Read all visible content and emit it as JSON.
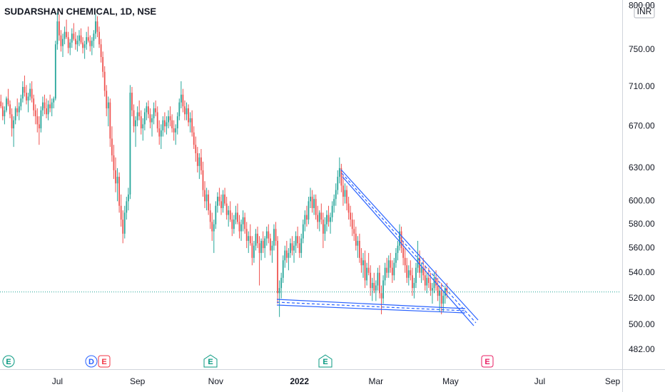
{
  "chart_data": {
    "type": "candlestick",
    "title": "SUDARSHAN CHEMICAL, 1D, NSE",
    "currency": "INR",
    "log_scale": true,
    "grid": false,
    "up_color": "#26a69a",
    "down_color": "#ef5350",
    "line_color": "#2962ff",
    "ylim": [
      470,
      807
    ],
    "yticks": [
      {
        "value": 800,
        "label": "800.00"
      },
      {
        "value": 750,
        "label": "750.00"
      },
      {
        "value": 710,
        "label": "710.00"
      },
      {
        "value": 670,
        "label": "670.00"
      },
      {
        "value": 630,
        "label": "630.00"
      },
      {
        "value": 600,
        "label": "600.00"
      },
      {
        "value": 580,
        "label": "580.00"
      },
      {
        "value": 560,
        "label": "560.00"
      },
      {
        "value": 540,
        "label": "540.00"
      },
      {
        "value": 520,
        "label": "520.00"
      },
      {
        "value": 500,
        "label": "500.00"
      },
      {
        "value": 482,
        "label": "482.00"
      }
    ],
    "xlim": [
      -0.5,
      340.5
    ],
    "xticks": [
      {
        "value": 31,
        "label": "Jul"
      },
      {
        "value": 75,
        "label": "Sep"
      },
      {
        "value": 118,
        "label": "Nov"
      },
      {
        "value": 164,
        "label": "2022"
      },
      {
        "value": 206,
        "label": "Mar"
      },
      {
        "value": 247,
        "label": "May"
      },
      {
        "value": 296,
        "label": "Jul"
      },
      {
        "value": 336,
        "label": "Sep"
      }
    ],
    "events": [
      {
        "label": "E",
        "color": "#089981"
      },
      {
        "label": "D",
        "color": "#2962ff"
      },
      {
        "label": "E",
        "color": "#f23645"
      },
      {
        "label": "E",
        "color": "#089981"
      },
      {
        "label": "E",
        "color": "#089981"
      },
      {
        "label": "E",
        "color": "#e91e63"
      }
    ],
    "ohlc": [
      [
        695,
        702,
        688,
        690
      ],
      [
        690,
        694,
        676,
        680
      ],
      [
        680,
        690,
        672,
        686
      ],
      [
        686,
        700,
        684,
        698
      ],
      [
        698,
        708,
        690,
        692
      ],
      [
        692,
        696,
        678,
        682
      ],
      [
        682,
        688,
        660,
        668
      ],
      [
        668,
        680,
        650,
        676
      ],
      [
        676,
        690,
        672,
        688
      ],
      [
        688,
        698,
        680,
        684
      ],
      [
        684,
        694,
        676,
        690
      ],
      [
        690,
        702,
        686,
        698
      ],
      [
        698,
        716,
        694,
        710
      ],
      [
        710,
        722,
        700,
        704
      ],
      [
        704,
        712,
        692,
        696
      ],
      [
        696,
        704,
        684,
        700
      ],
      [
        700,
        714,
        696,
        708
      ],
      [
        708,
        716,
        694,
        698
      ],
      [
        698,
        702,
        680,
        686
      ],
      [
        686,
        692,
        672,
        680
      ],
      [
        680,
        688,
        664,
        672
      ],
      [
        672,
        680,
        652,
        668
      ],
      [
        668,
        690,
        664,
        686
      ],
      [
        686,
        700,
        680,
        694
      ],
      [
        694,
        702,
        682,
        688
      ],
      [
        688,
        698,
        678,
        682
      ],
      [
        682,
        696,
        676,
        692
      ],
      [
        692,
        702,
        684,
        688
      ],
      [
        688,
        698,
        680,
        694
      ],
      [
        694,
        700,
        688,
        698
      ],
      [
        698,
        760,
        696,
        756
      ],
      [
        756,
        792,
        750,
        782
      ],
      [
        782,
        790,
        760,
        766
      ],
      [
        766,
        772,
        748,
        754
      ],
      [
        754,
        768,
        742,
        762
      ],
      [
        762,
        776,
        756,
        770
      ],
      [
        770,
        784,
        762,
        764
      ],
      [
        764,
        770,
        746,
        752
      ],
      [
        752,
        762,
        744,
        758
      ],
      [
        758,
        774,
        752,
        768
      ],
      [
        768,
        780,
        760,
        762
      ],
      [
        762,
        770,
        750,
        756
      ],
      [
        756,
        766,
        748,
        760
      ],
      [
        760,
        772,
        754,
        766
      ],
      [
        766,
        774,
        756,
        758
      ],
      [
        758,
        764,
        746,
        752
      ],
      [
        752,
        760,
        740,
        756
      ],
      [
        756,
        770,
        750,
        764
      ],
      [
        764,
        776,
        758,
        760
      ],
      [
        760,
        766,
        748,
        754
      ],
      [
        754,
        764,
        744,
        760
      ],
      [
        760,
        772,
        752,
        768
      ],
      [
        768,
        790,
        762,
        782
      ],
      [
        782,
        788,
        764,
        770
      ],
      [
        770,
        776,
        752,
        756
      ],
      [
        756,
        762,
        736,
        742
      ],
      [
        742,
        748,
        720,
        726
      ],
      [
        726,
        732,
        700,
        706
      ],
      [
        706,
        712,
        680,
        688
      ],
      [
        688,
        700,
        670,
        694
      ],
      [
        694,
        698,
        650,
        658
      ],
      [
        658,
        670,
        636,
        642
      ],
      [
        642,
        652,
        620,
        628
      ],
      [
        628,
        640,
        608,
        616
      ],
      [
        616,
        630,
        600,
        622
      ],
      [
        622,
        626,
        590,
        596
      ],
      [
        596,
        606,
        578,
        584
      ],
      [
        584,
        592,
        564,
        572
      ],
      [
        572,
        596,
        568,
        590
      ],
      [
        590,
        604,
        584,
        600
      ],
      [
        600,
        612,
        592,
        606
      ],
      [
        606,
        712,
        602,
        704
      ],
      [
        704,
        710,
        680,
        686
      ],
      [
        686,
        692,
        664,
        670
      ],
      [
        670,
        680,
        650,
        676
      ],
      [
        676,
        690,
        670,
        684
      ],
      [
        684,
        696,
        676,
        680
      ],
      [
        680,
        686,
        662,
        668
      ],
      [
        668,
        678,
        656,
        672
      ],
      [
        672,
        688,
        666,
        684
      ],
      [
        684,
        694,
        676,
        690
      ],
      [
        690,
        696,
        678,
        682
      ],
      [
        682,
        688,
        668,
        674
      ],
      [
        674,
        682,
        660,
        678
      ],
      [
        678,
        694,
        672,
        688
      ],
      [
        688,
        696,
        680,
        684
      ],
      [
        684,
        690,
        664,
        668
      ],
      [
        668,
        676,
        652,
        660
      ],
      [
        660,
        672,
        648,
        666
      ],
      [
        666,
        680,
        660,
        676
      ],
      [
        676,
        684,
        664,
        670
      ],
      [
        670,
        680,
        662,
        674
      ],
      [
        674,
        686,
        668,
        680
      ],
      [
        680,
        690,
        670,
        676
      ],
      [
        676,
        682,
        664,
        668
      ],
      [
        668,
        676,
        656,
        664
      ],
      [
        664,
        672,
        652,
        668
      ],
      [
        668,
        684,
        662,
        680
      ],
      [
        680,
        698,
        676,
        694
      ],
      [
        694,
        716,
        688,
        702
      ],
      [
        702,
        708,
        684,
        690
      ],
      [
        690,
        696,
        676,
        682
      ],
      [
        682,
        694,
        676,
        688
      ],
      [
        688,
        692,
        670,
        674
      ],
      [
        674,
        684,
        664,
        678
      ],
      [
        678,
        686,
        660,
        664
      ],
      [
        664,
        670,
        648,
        652
      ],
      [
        652,
        660,
        636,
        644
      ],
      [
        644,
        650,
        626,
        632
      ],
      [
        632,
        644,
        620,
        640
      ],
      [
        640,
        648,
        624,
        628
      ],
      [
        628,
        636,
        604,
        610
      ],
      [
        610,
        618,
        594,
        600
      ],
      [
        600,
        612,
        592,
        606
      ],
      [
        606,
        610,
        588,
        592
      ],
      [
        592,
        598,
        576,
        582
      ],
      [
        582,
        590,
        566,
        574
      ],
      [
        574,
        584,
        556,
        580
      ],
      [
        580,
        600,
        576,
        596
      ],
      [
        596,
        608,
        590,
        604
      ],
      [
        604,
        612,
        596,
        600
      ],
      [
        600,
        606,
        588,
        594
      ],
      [
        594,
        610,
        590,
        606
      ],
      [
        606,
        612,
        596,
        598
      ],
      [
        598,
        604,
        584,
        588
      ],
      [
        588,
        596,
        578,
        592
      ],
      [
        592,
        600,
        582,
        584
      ],
      [
        584,
        590,
        570,
        576
      ],
      [
        576,
        588,
        572,
        584
      ],
      [
        584,
        596,
        580,
        590
      ],
      [
        590,
        598,
        580,
        582
      ],
      [
        582,
        588,
        568,
        574
      ],
      [
        574,
        584,
        566,
        580
      ],
      [
        580,
        592,
        574,
        586
      ],
      [
        586,
        590,
        572,
        576
      ],
      [
        576,
        582,
        560,
        566
      ],
      [
        566,
        574,
        556,
        570
      ],
      [
        570,
        580,
        562,
        564
      ],
      [
        564,
        570,
        546,
        552
      ],
      [
        552,
        566,
        548,
        562
      ],
      [
        562,
        576,
        558,
        572
      ],
      [
        572,
        578,
        560,
        564
      ],
      [
        564,
        570,
        530,
        556
      ],
      [
        556,
        568,
        550,
        566
      ],
      [
        566,
        574,
        556,
        560
      ],
      [
        560,
        570,
        552,
        568
      ],
      [
        568,
        578,
        562,
        574
      ],
      [
        574,
        580,
        564,
        568
      ],
      [
        568,
        572,
        554,
        558
      ],
      [
        558,
        566,
        548,
        562
      ],
      [
        562,
        580,
        558,
        576
      ],
      [
        576,
        582,
        562,
        566
      ],
      [
        566,
        570,
        516,
        524
      ],
      [
        524,
        534,
        506,
        528
      ],
      [
        528,
        540,
        520,
        536
      ],
      [
        536,
        554,
        532,
        550
      ],
      [
        550,
        562,
        544,
        558
      ],
      [
        558,
        566,
        548,
        552
      ],
      [
        552,
        560,
        542,
        556
      ],
      [
        556,
        568,
        552,
        564
      ],
      [
        564,
        570,
        554,
        558
      ],
      [
        558,
        566,
        548,
        562
      ],
      [
        562,
        574,
        556,
        570
      ],
      [
        570,
        578,
        560,
        564
      ],
      [
        564,
        570,
        552,
        556
      ],
      [
        556,
        572,
        552,
        568
      ],
      [
        568,
        584,
        564,
        580
      ],
      [
        580,
        592,
        574,
        588
      ],
      [
        588,
        596,
        578,
        584
      ],
      [
        584,
        604,
        580,
        600
      ],
      [
        600,
        612,
        594,
        604
      ],
      [
        604,
        610,
        590,
        594
      ],
      [
        594,
        606,
        588,
        602
      ],
      [
        602,
        606,
        584,
        588
      ],
      [
        588,
        596,
        576,
        582
      ],
      [
        582,
        592,
        574,
        590
      ],
      [
        590,
        598,
        580,
        584
      ],
      [
        584,
        590,
        560,
        572
      ],
      [
        572,
        586,
        566,
        580
      ],
      [
        580,
        592,
        574,
        588
      ],
      [
        588,
        596,
        578,
        582
      ],
      [
        582,
        590,
        572,
        586
      ],
      [
        586,
        600,
        582,
        596
      ],
      [
        596,
        606,
        590,
        602
      ],
      [
        602,
        616,
        596,
        610
      ],
      [
        610,
        628,
        606,
        622
      ],
      [
        622,
        640,
        616,
        630
      ],
      [
        630,
        634,
        608,
        614
      ],
      [
        614,
        624,
        596,
        604
      ],
      [
        604,
        616,
        598,
        610
      ],
      [
        610,
        614,
        592,
        598
      ],
      [
        598,
        604,
        584,
        590
      ],
      [
        590,
        596,
        578,
        584
      ],
      [
        584,
        590,
        570,
        576
      ],
      [
        576,
        584,
        566,
        572
      ],
      [
        572,
        578,
        558,
        562
      ],
      [
        562,
        570,
        552,
        566
      ],
      [
        566,
        572,
        548,
        552
      ],
      [
        552,
        560,
        540,
        546
      ],
      [
        546,
        556,
        536,
        550
      ],
      [
        550,
        558,
        528,
        534
      ],
      [
        534,
        548,
        530,
        544
      ],
      [
        544,
        556,
        538,
        540
      ],
      [
        540,
        546,
        522,
        528
      ],
      [
        528,
        536,
        518,
        532
      ],
      [
        532,
        540,
        524,
        526
      ],
      [
        526,
        534,
        518,
        530
      ],
      [
        530,
        544,
        526,
        540
      ],
      [
        540,
        546,
        520,
        524
      ],
      [
        524,
        530,
        508,
        520
      ],
      [
        520,
        538,
        516,
        534
      ],
      [
        534,
        548,
        530,
        544
      ],
      [
        544,
        552,
        536,
        540
      ],
      [
        540,
        554,
        536,
        550
      ],
      [
        550,
        556,
        540,
        544
      ],
      [
        544,
        550,
        532,
        538
      ],
      [
        538,
        552,
        534,
        548
      ],
      [
        548,
        560,
        544,
        556
      ],
      [
        556,
        566,
        550,
        562
      ],
      [
        562,
        580,
        558,
        574
      ],
      [
        574,
        578,
        556,
        560
      ],
      [
        560,
        566,
        546,
        552
      ],
      [
        552,
        560,
        540,
        546
      ],
      [
        546,
        552,
        532,
        536
      ],
      [
        536,
        546,
        530,
        542
      ],
      [
        542,
        550,
        534,
        538
      ],
      [
        538,
        544,
        522,
        528
      ],
      [
        528,
        536,
        520,
        532
      ],
      [
        532,
        548,
        528,
        544
      ],
      [
        544,
        566,
        540,
        552
      ],
      [
        552,
        558,
        536,
        540
      ],
      [
        540,
        548,
        532,
        544
      ],
      [
        544,
        552,
        534,
        538
      ],
      [
        538,
        546,
        526,
        530
      ],
      [
        530,
        540,
        524,
        536
      ],
      [
        536,
        544,
        528,
        532
      ],
      [
        532,
        540,
        522,
        526
      ],
      [
        526,
        532,
        516,
        528
      ],
      [
        528,
        540,
        524,
        536
      ],
      [
        536,
        542,
        526,
        530
      ],
      [
        530,
        536,
        518,
        522
      ],
      [
        522,
        530,
        510,
        526
      ],
      [
        526,
        532,
        508,
        516
      ],
      [
        516,
        526,
        510,
        522
      ],
      [
        522,
        530,
        516,
        528
      ],
      [
        528,
        532,
        520,
        525
      ]
    ]
  }
}
